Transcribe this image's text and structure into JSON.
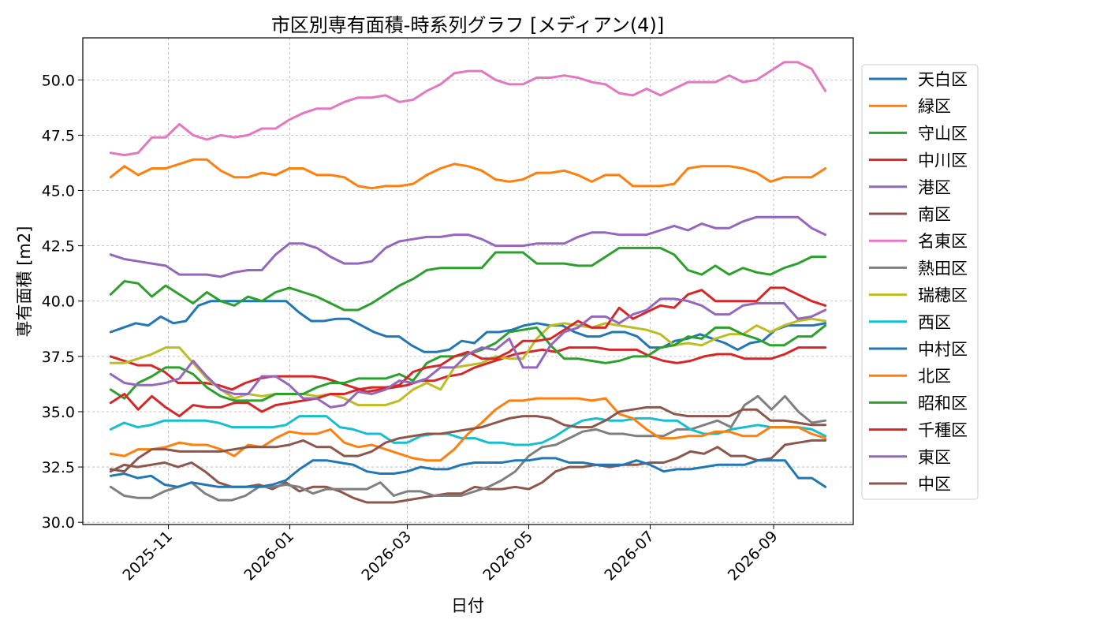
{
  "chart_data": {
    "type": "line",
    "title": "市区別専有面積-時系列グラフ [メディアン(4)]",
    "xlabel": "日付",
    "ylabel": "専有面積 [m2]",
    "x_range": [
      "2025-09-19",
      "2026-10-11"
    ],
    "ylim": [
      29.9,
      51.9
    ],
    "grid": true,
    "legend_position": "right",
    "x_ticks": [
      {
        "date": "2025-11-01",
        "label": "2025-11"
      },
      {
        "date": "2026-01-01",
        "label": "2026-01"
      },
      {
        "date": "2026-03-01",
        "label": "2026-03"
      },
      {
        "date": "2026-05-01",
        "label": "2026-05"
      },
      {
        "date": "2026-07-01",
        "label": "2026-07"
      },
      {
        "date": "2026-09-01",
        "label": "2026-09"
      }
    ],
    "y_ticks": [
      {
        "value": 30.0,
        "label": "30.0"
      },
      {
        "value": 32.5,
        "label": "32.5"
      },
      {
        "value": 35.0,
        "label": "35.0"
      },
      {
        "value": 37.5,
        "label": "37.5"
      },
      {
        "value": 40.0,
        "label": "40.0"
      },
      {
        "value": 42.5,
        "label": "42.5"
      },
      {
        "value": 45.0,
        "label": "45.0"
      },
      {
        "value": 47.5,
        "label": "47.5"
      },
      {
        "value": 50.0,
        "label": "50.0"
      }
    ],
    "x_start": "2025-10-03",
    "x_end": "2026-09-27",
    "series": [
      {
        "name": "天白区",
        "color": "#1f77b4",
        "values": [
          38.6,
          38.8,
          39.0,
          38.9,
          39.3,
          39.0,
          39.1,
          39.8,
          40.0,
          40.0,
          40.0,
          40.0,
          40.0,
          40.0,
          40.0,
          39.5,
          39.1,
          39.1,
          39.2,
          39.2,
          38.9,
          38.6,
          38.4,
          38.4,
          38.0,
          37.7,
          37.7,
          37.8,
          38.2,
          38.1,
          38.6,
          38.6,
          38.7,
          38.9,
          39.0,
          38.9,
          38.9,
          38.6,
          38.4,
          38.4,
          38.6,
          38.6,
          38.4,
          37.9,
          37.9,
          38.2,
          38.3,
          38.5,
          38.3,
          38.1,
          37.8,
          38.1,
          38.2,
          38.7,
          38.9,
          38.9,
          38.9,
          39.0
        ]
      },
      {
        "name": "緑区",
        "color": "#ff7f0e",
        "values": [
          45.6,
          46.1,
          45.7,
          46.0,
          46.0,
          46.2,
          46.4,
          46.4,
          45.9,
          45.6,
          45.6,
          45.8,
          45.7,
          46.0,
          46.0,
          45.7,
          45.7,
          45.6,
          45.2,
          45.1,
          45.2,
          45.2,
          45.3,
          45.7,
          46.0,
          46.2,
          46.1,
          45.9,
          45.5,
          45.4,
          45.5,
          45.8,
          45.8,
          45.9,
          45.7,
          45.4,
          45.7,
          45.7,
          45.2,
          45.2,
          45.2,
          45.3,
          46.0,
          46.1,
          46.1,
          46.1,
          46.0,
          45.8,
          45.4,
          45.6,
          45.6,
          45.6,
          46.0
        ]
      },
      {
        "name": "守山区",
        "color": "#2ca02c",
        "values": [
          40.3,
          40.9,
          40.8,
          40.2,
          40.7,
          40.3,
          39.9,
          40.4,
          40.0,
          39.8,
          40.2,
          40.0,
          40.4,
          40.6,
          40.4,
          40.2,
          39.9,
          39.6,
          39.6,
          39.9,
          40.3,
          40.7,
          41.0,
          41.4,
          41.5,
          41.5,
          41.5,
          41.5,
          42.2,
          42.2,
          42.2,
          41.7,
          41.7,
          41.7,
          41.6,
          41.6,
          42.0,
          42.4,
          42.4,
          42.4,
          42.4,
          42.1,
          41.4,
          41.2,
          41.6,
          41.2,
          41.5,
          41.3,
          41.2,
          41.5,
          41.7,
          42.0,
          42.0
        ]
      },
      {
        "name": "中川区",
        "color": "#d62728",
        "values": [
          37.5,
          37.3,
          37.1,
          37.1,
          36.8,
          36.3,
          36.3,
          36.3,
          36.2,
          36.0,
          36.3,
          36.5,
          36.6,
          36.6,
          36.6,
          36.6,
          36.5,
          36.3,
          36.1,
          35.9,
          36.0,
          36.1,
          36.2,
          36.4,
          36.4,
          36.6,
          36.7,
          37.0,
          37.2,
          37.4,
          37.6,
          37.7,
          37.8,
          37.7,
          37.9,
          37.9,
          37.9,
          37.8,
          37.8,
          37.8,
          37.5,
          37.3,
          37.2,
          37.3,
          37.5,
          37.6,
          37.6,
          37.4,
          37.4,
          37.4,
          37.6,
          37.9,
          37.9,
          37.9
        ]
      },
      {
        "name": "港区",
        "color": "#9467bd",
        "values": [
          42.1,
          41.9,
          41.8,
          41.7,
          41.6,
          41.2,
          41.2,
          41.2,
          41.1,
          41.3,
          41.4,
          41.4,
          42.1,
          42.6,
          42.6,
          42.4,
          42.0,
          41.7,
          41.7,
          41.8,
          42.4,
          42.7,
          42.8,
          42.9,
          42.9,
          43.0,
          43.0,
          42.8,
          42.5,
          42.5,
          42.5,
          42.6,
          42.6,
          42.6,
          42.9,
          43.1,
          43.1,
          43.0,
          43.0,
          43.0,
          43.2,
          43.4,
          43.2,
          43.5,
          43.3,
          43.3,
          43.6,
          43.8,
          43.8,
          43.8,
          43.8,
          43.3,
          43.0
        ]
      },
      {
        "name": "南区",
        "color": "#8c564b",
        "values": [
          32.3,
          32.6,
          32.5,
          32.6,
          32.7,
          32.5,
          32.7,
          32.3,
          31.8,
          31.6,
          31.6,
          31.7,
          31.5,
          31.8,
          31.4,
          31.6,
          31.6,
          31.4,
          31.1,
          30.9,
          30.9,
          30.9,
          31.0,
          31.1,
          31.2,
          31.3,
          31.3,
          31.6,
          31.5,
          31.5,
          31.6,
          31.5,
          31.8,
          32.3,
          32.5,
          32.5,
          32.6,
          32.5,
          32.6,
          32.6,
          32.7,
          32.7,
          32.9,
          33.2,
          33.1,
          33.4,
          33.0,
          33.0,
          32.8,
          32.9,
          33.5,
          33.6,
          33.7,
          33.7
        ]
      },
      {
        "name": "名東区",
        "color": "#e377c2",
        "values": [
          46.7,
          46.6,
          46.7,
          47.4,
          47.4,
          48.0,
          47.5,
          47.3,
          47.5,
          47.4,
          47.5,
          47.8,
          47.8,
          48.2,
          48.5,
          48.7,
          48.7,
          49.0,
          49.2,
          49.2,
          49.3,
          49.0,
          49.1,
          49.5,
          49.8,
          50.3,
          50.4,
          50.4,
          50.0,
          49.8,
          49.8,
          50.1,
          50.1,
          50.2,
          50.1,
          49.9,
          49.8,
          49.4,
          49.3,
          49.6,
          49.3,
          49.6,
          49.9,
          49.9,
          49.9,
          50.2,
          49.9,
          50.0,
          50.4,
          50.8,
          50.8,
          50.5,
          49.5
        ]
      },
      {
        "name": "熱田区",
        "color": "#7f7f7f",
        "values": [
          31.6,
          31.2,
          31.1,
          31.1,
          31.4,
          31.6,
          31.8,
          31.3,
          31.0,
          31.0,
          31.2,
          31.6,
          31.6,
          31.7,
          31.6,
          31.3,
          31.5,
          31.5,
          31.5,
          31.5,
          31.8,
          31.2,
          31.4,
          31.4,
          31.2,
          31.2,
          31.2,
          31.4,
          31.6,
          31.9,
          32.3,
          33.0,
          33.4,
          33.5,
          33.8,
          34.1,
          34.2,
          34.0,
          34.0,
          33.9,
          33.9,
          33.9,
          34.2,
          34.2,
          34.4,
          34.6,
          34.3,
          35.3,
          35.7,
          35.1,
          35.7,
          35.0,
          34.5,
          34.6
        ]
      },
      {
        "name": "瑞穂区",
        "color": "#bcbd22",
        "values": [
          37.2,
          37.2,
          37.4,
          37.6,
          37.9,
          37.9,
          37.2,
          36.5,
          36.0,
          35.6,
          35.8,
          35.7,
          35.8,
          35.8,
          35.8,
          35.7,
          35.8,
          35.6,
          35.3,
          35.3,
          35.3,
          35.5,
          36.0,
          36.3,
          36.0,
          37.0,
          37.1,
          37.2,
          37.5,
          37.4,
          37.4,
          38.3,
          38.9,
          39.0,
          38.9,
          38.8,
          39.0,
          38.9,
          38.8,
          38.7,
          38.5,
          38.0,
          38.1,
          38.0,
          38.3,
          38.5,
          38.5,
          38.9,
          38.6,
          38.9,
          39.1,
          39.2,
          39.1
        ]
      },
      {
        "name": "西区",
        "color": "#17becf",
        "values": [
          34.2,
          34.5,
          34.3,
          34.4,
          34.6,
          34.6,
          34.6,
          34.6,
          34.5,
          34.3,
          34.3,
          34.3,
          34.3,
          34.4,
          34.8,
          34.8,
          34.8,
          34.3,
          34.2,
          34.0,
          34.0,
          33.6,
          33.6,
          33.9,
          34.0,
          34.0,
          33.8,
          33.8,
          33.6,
          33.6,
          33.5,
          33.5,
          33.6,
          33.9,
          34.3,
          34.6,
          34.7,
          34.6,
          34.6,
          34.7,
          34.7,
          34.6,
          34.6,
          34.2,
          34.0,
          34.0,
          34.2,
          34.3,
          34.4,
          34.3,
          34.3,
          34.3,
          34.2,
          33.9
        ]
      },
      {
        "name": "中村区",
        "color": "#1f77b4",
        "values": [
          32.1,
          32.2,
          32.0,
          32.1,
          31.7,
          31.6,
          31.8,
          31.7,
          31.6,
          31.6,
          31.6,
          31.6,
          31.7,
          31.9,
          32.4,
          32.8,
          32.8,
          32.7,
          32.6,
          32.3,
          32.2,
          32.2,
          32.3,
          32.5,
          32.4,
          32.4,
          32.6,
          32.7,
          32.7,
          32.7,
          32.8,
          32.8,
          32.9,
          32.9,
          32.7,
          32.7,
          32.6,
          32.6,
          32.6,
          32.8,
          32.6,
          32.3,
          32.4,
          32.4,
          32.5,
          32.6,
          32.6,
          32.6,
          32.8,
          32.8,
          32.8,
          32.0,
          32.0,
          31.6
        ]
      },
      {
        "name": "北区",
        "color": "#ff7f0e",
        "values": [
          33.1,
          33.0,
          33.3,
          33.3,
          33.4,
          33.6,
          33.5,
          33.5,
          33.3,
          33.0,
          33.5,
          33.4,
          33.8,
          34.1,
          34.0,
          34.0,
          34.2,
          33.6,
          33.4,
          33.5,
          33.3,
          33.1,
          32.9,
          32.8,
          32.8,
          33.3,
          34.0,
          34.5,
          35.1,
          35.5,
          35.5,
          35.6,
          35.6,
          35.6,
          35.6,
          35.5,
          35.6,
          34.9,
          34.7,
          34.2,
          33.8,
          33.8,
          33.9,
          33.9,
          34.1,
          34.1,
          33.9,
          33.9,
          34.3,
          34.3,
          34.3,
          34.0,
          33.8
        ]
      },
      {
        "name": "昭和区",
        "color": "#2ca02c",
        "values": [
          36.0,
          35.6,
          36.3,
          36.6,
          37.0,
          37.0,
          36.7,
          36.1,
          35.7,
          35.5,
          35.5,
          35.5,
          35.8,
          35.8,
          35.8,
          36.1,
          36.3,
          36.3,
          36.5,
          36.5,
          36.5,
          36.7,
          36.4,
          37.2,
          37.5,
          37.5,
          37.6,
          37.8,
          38.1,
          38.6,
          38.7,
          38.8,
          38.0,
          37.4,
          37.4,
          37.3,
          37.2,
          37.3,
          37.5,
          37.5,
          37.9,
          38.0,
          38.4,
          38.3,
          38.8,
          38.8,
          38.5,
          38.3,
          38.0,
          38.0,
          38.4,
          38.4,
          38.9
        ]
      },
      {
        "name": "千種区",
        "color": "#d62728",
        "values": [
          35.4,
          35.8,
          35.1,
          35.7,
          35.2,
          34.8,
          35.3,
          35.2,
          35.2,
          35.4,
          35.4,
          35.0,
          35.3,
          35.4,
          35.5,
          35.6,
          35.8,
          35.8,
          36.0,
          36.1,
          36.1,
          36.2,
          36.8,
          37.0,
          37.1,
          37.5,
          37.7,
          37.4,
          37.4,
          37.7,
          38.2,
          38.2,
          38.3,
          38.7,
          39.1,
          38.8,
          38.8,
          39.7,
          39.2,
          39.5,
          39.8,
          39.7,
          40.3,
          40.5,
          40.0,
          40.0,
          40.0,
          40.0,
          40.6,
          40.6,
          40.3,
          40.0,
          39.8
        ]
      },
      {
        "name": "東区",
        "color": "#9467bd",
        "values": [
          36.7,
          36.3,
          36.2,
          36.2,
          36.3,
          36.5,
          37.3,
          36.6,
          36.0,
          35.8,
          35.8,
          36.6,
          36.6,
          36.2,
          35.6,
          35.6,
          35.2,
          35.3,
          35.9,
          35.8,
          36.0,
          36.4,
          36.3,
          36.5,
          37.0,
          37.0,
          37.6,
          37.9,
          37.8,
          38.3,
          37.0,
          37.0,
          38.0,
          38.6,
          38.8,
          39.3,
          39.3,
          39.0,
          39.4,
          39.6,
          40.1,
          40.1,
          40.0,
          39.8,
          39.4,
          39.4,
          39.8,
          39.9,
          39.9,
          39.9,
          39.2,
          39.3,
          39.6
        ]
      },
      {
        "name": "中区",
        "color": "#8c564b",
        "values": [
          32.4,
          32.3,
          32.9,
          33.3,
          33.3,
          33.2,
          33.2,
          33.2,
          33.2,
          33.3,
          33.4,
          33.4,
          33.4,
          33.5,
          33.7,
          33.4,
          33.4,
          33.0,
          33.0,
          33.2,
          33.6,
          33.8,
          33.9,
          34.0,
          34.0,
          34.1,
          34.2,
          34.3,
          34.5,
          34.7,
          34.8,
          34.8,
          34.7,
          34.4,
          34.3,
          34.3,
          34.6,
          35.0,
          35.1,
          35.2,
          35.2,
          34.9,
          34.8,
          34.8,
          34.8,
          34.8,
          35.1,
          35.1,
          34.6,
          34.6,
          34.5,
          34.4,
          34.4
        ]
      }
    ]
  }
}
